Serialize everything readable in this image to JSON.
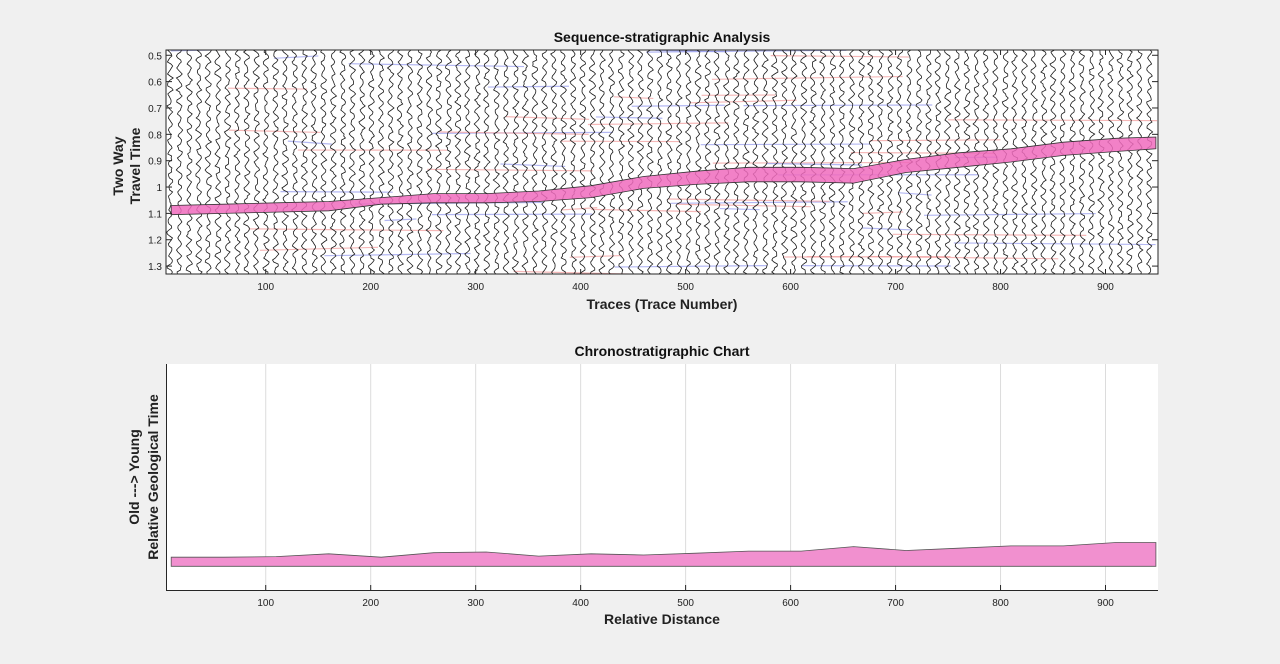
{
  "chart_data": [
    {
      "type": "area",
      "title": "Sequence-stratigraphic Analysis",
      "xlabel": "Traces (Trace Number)",
      "ylabel_lines": [
        "Two Way",
        "Travel Time"
      ],
      "xlim": [
        5,
        950
      ],
      "ylim": [
        0.48,
        1.33
      ],
      "y_reversed": true,
      "xticks": [
        100,
        200,
        300,
        400,
        500,
        600,
        700,
        800,
        900
      ],
      "yticks": [
        0.5,
        0.6,
        0.7,
        0.8,
        0.9,
        1,
        1.1,
        1.2,
        1.3
      ],
      "grid": false,
      "background": "wiggle-trace seismic section",
      "horizon": {
        "color": "#f06bbd",
        "x": [
          10,
          60,
          110,
          160,
          210,
          260,
          310,
          360,
          410,
          460,
          510,
          560,
          610,
          660,
          710,
          760,
          810,
          860,
          910,
          948
        ],
        "top": [
          1.07,
          1.065,
          1.06,
          1.055,
          1.04,
          1.025,
          1.025,
          1.015,
          0.995,
          0.96,
          0.94,
          0.925,
          0.925,
          0.93,
          0.895,
          0.87,
          0.855,
          0.83,
          0.815,
          0.81
        ],
        "bottom": [
          1.105,
          1.1,
          1.095,
          1.09,
          1.065,
          1.06,
          1.06,
          1.055,
          1.04,
          1.005,
          0.99,
          0.98,
          0.98,
          0.985,
          0.945,
          0.925,
          0.905,
          0.88,
          0.865,
          0.855
        ]
      }
    },
    {
      "type": "area",
      "title": "Chronostratigraphic Chart",
      "xlabel": "Relative Distance",
      "ylabel_lines": [
        "Old   --->   Young",
        "Relative Geological Time"
      ],
      "xlim": [
        5,
        950
      ],
      "ylim": [
        0,
        1
      ],
      "xticks": [
        100,
        200,
        300,
        400,
        500,
        600,
        700,
        800,
        900
      ],
      "yticks": [],
      "grid": "vertical",
      "band": {
        "color": "#f190cf",
        "x": [
          10,
          60,
          110,
          160,
          210,
          260,
          310,
          360,
          410,
          460,
          510,
          560,
          610,
          660,
          710,
          760,
          810,
          860,
          910,
          948
        ],
        "top": [
          0.145,
          0.145,
          0.148,
          0.16,
          0.145,
          0.165,
          0.168,
          0.15,
          0.16,
          0.155,
          0.163,
          0.172,
          0.172,
          0.192,
          0.175,
          0.185,
          0.195,
          0.195,
          0.21,
          0.21
        ],
        "bottom": [
          0.105,
          0.105,
          0.105,
          0.105,
          0.105,
          0.105,
          0.105,
          0.105,
          0.105,
          0.105,
          0.105,
          0.105,
          0.105,
          0.105,
          0.105,
          0.105,
          0.105,
          0.105,
          0.105,
          0.105
        ]
      }
    }
  ]
}
